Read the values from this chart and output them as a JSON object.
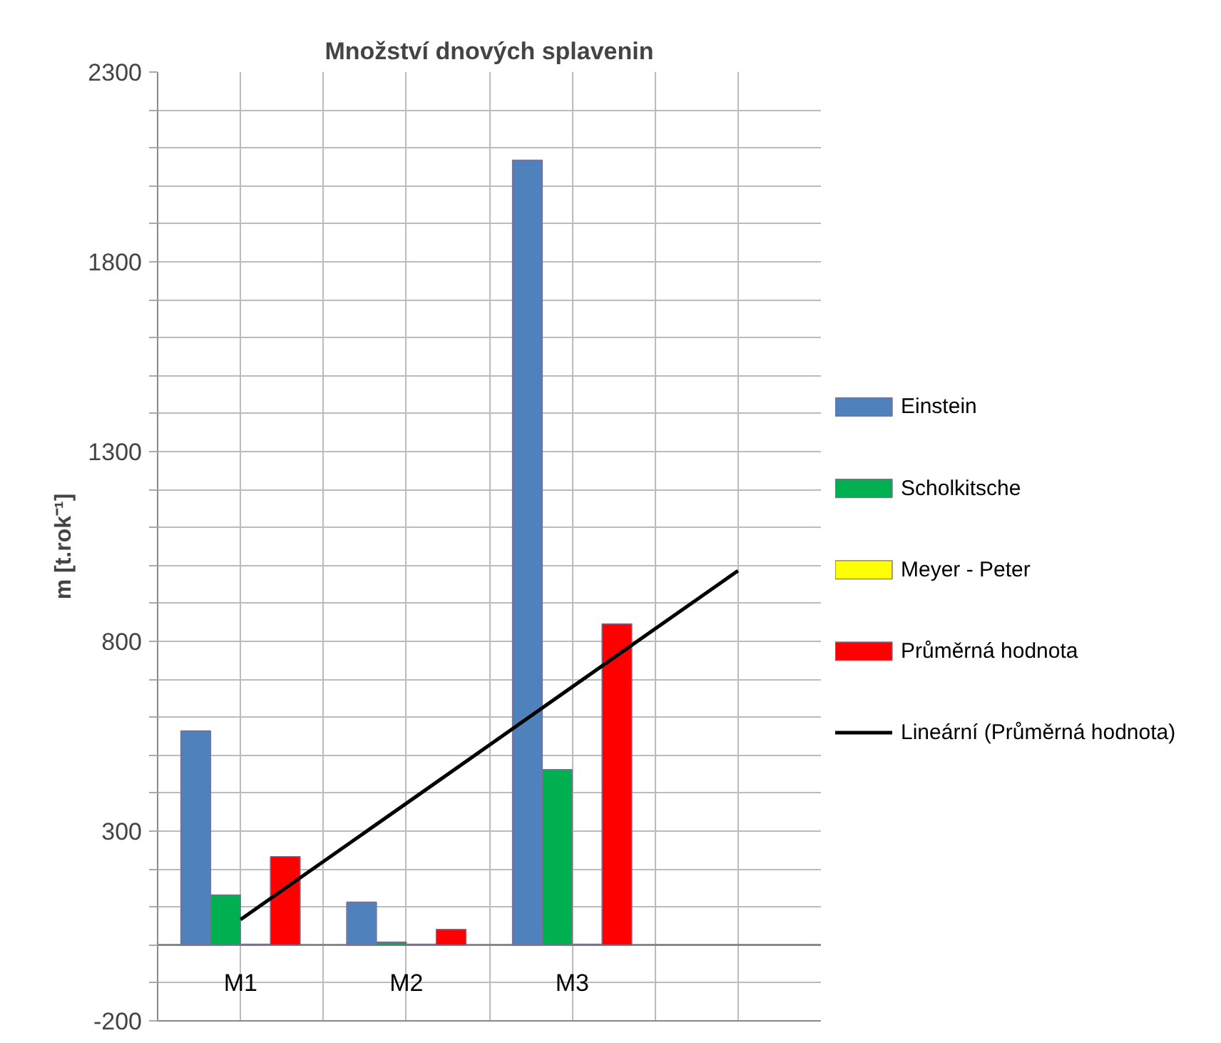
{
  "chart_data": {
    "type": "bar",
    "title": "Množství dnových splavenin",
    "ylabel": "m [t.rok⁻¹]",
    "categories": [
      "M1",
      "M2",
      "M3",
      null
    ],
    "series": [
      {
        "name": "Einstein",
        "color": "#4f81bd",
        "values": [
          564,
          113,
          2068,
          null
        ]
      },
      {
        "name": "Scholkitsche",
        "color": "#00b050",
        "values": [
          132,
          8,
          462,
          null
        ]
      },
      {
        "name": "Meyer - Peter",
        "color": "#ffff00",
        "values": [
          2,
          2,
          2,
          null
        ]
      },
      {
        "name": "Průměrná hodnota",
        "color": "#ff0000",
        "values": [
          233,
          41,
          846,
          null
        ]
      },
      {
        "name": "Lineární (Průměrná hodnota)",
        "color": "#000000",
        "type": "line",
        "values": [
          67,
          373,
          680,
          986
        ]
      }
    ],
    "ylim": [
      -200,
      2300
    ],
    "yticks": [
      -200,
      300,
      800,
      1300,
      1800,
      2300
    ],
    "grid": true,
    "legend": "right"
  }
}
